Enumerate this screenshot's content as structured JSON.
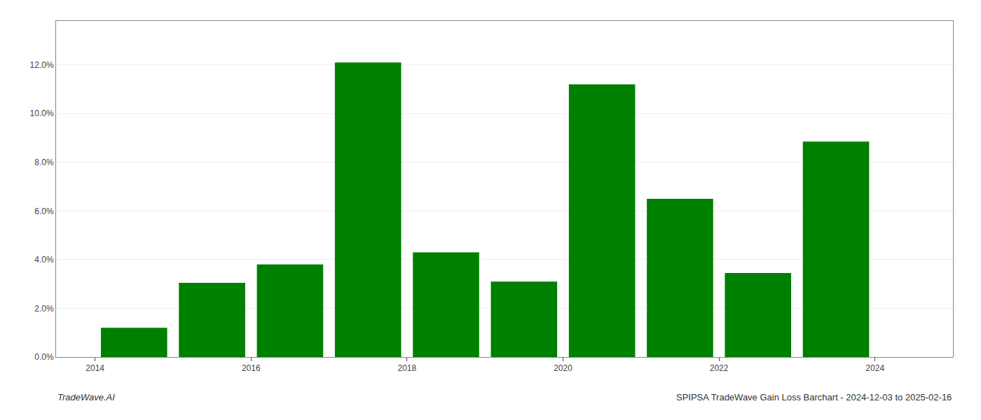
{
  "chart_data": {
    "type": "bar",
    "x": [
      2014,
      2015,
      2016,
      2017,
      2018,
      2019,
      2020,
      2021,
      2022,
      2023
    ],
    "values": [
      0.012,
      0.0305,
      0.038,
      0.121,
      0.043,
      0.031,
      0.112,
      0.065,
      0.0345,
      0.0885
    ],
    "color": "#008000",
    "xlim": [
      2013.0,
      2024.5
    ],
    "xticks": [
      {
        "value": 2013.5,
        "label": "2014"
      },
      {
        "value": 2015.5,
        "label": "2016"
      },
      {
        "value": 2017.5,
        "label": "2018"
      },
      {
        "value": 2019.5,
        "label": "2020"
      },
      {
        "value": 2021.5,
        "label": "2022"
      },
      {
        "value": 2023.5,
        "label": "2024"
      }
    ],
    "ylim": [
      0,
      0.138
    ],
    "yticks": [
      {
        "value": 0.0,
        "label": "0.0%"
      },
      {
        "value": 0.02,
        "label": "2.0%"
      },
      {
        "value": 0.04,
        "label": "4.0%"
      },
      {
        "value": 0.06,
        "label": "6.0%"
      },
      {
        "value": 0.08,
        "label": "8.0%"
      },
      {
        "value": 0.1,
        "label": "10.0%"
      },
      {
        "value": 0.12,
        "label": "12.0%"
      }
    ],
    "grid": true,
    "annotations": [
      "TradeWave.AI",
      "SPIPSA TradeWave Gain Loss Barchart - 2024-12-03 to 2025-02-16"
    ]
  }
}
